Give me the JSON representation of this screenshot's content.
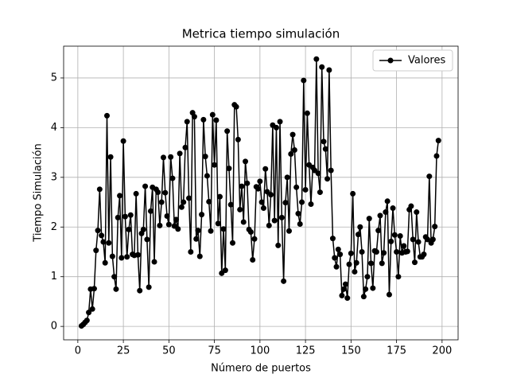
{
  "chart_data": {
    "type": "line",
    "title": "Metrica tiempo simulación",
    "xlabel": "Número de puertos",
    "ylabel": "Tiempo Simulación",
    "x": [
      2,
      3,
      4,
      5,
      6,
      7,
      8,
      9,
      10,
      11,
      12,
      13,
      14,
      15,
      16,
      17,
      18,
      19,
      20,
      21,
      22,
      23,
      24,
      25,
      26,
      27,
      28,
      29,
      30,
      31,
      32,
      33,
      34,
      35,
      36,
      37,
      38,
      39,
      40,
      41,
      42,
      43,
      44,
      45,
      46,
      47,
      48,
      49,
      50,
      51,
      52,
      53,
      54,
      55,
      56,
      57,
      58,
      59,
      60,
      61,
      62,
      63,
      64,
      65,
      66,
      67,
      68,
      69,
      70,
      71,
      72,
      73,
      74,
      75,
      76,
      77,
      78,
      79,
      80,
      81,
      82,
      83,
      84,
      85,
      86,
      87,
      88,
      89,
      90,
      91,
      92,
      93,
      94,
      95,
      96,
      97,
      98,
      99,
      100,
      101,
      102,
      103,
      104,
      105,
      106,
      107,
      108,
      109,
      110,
      111,
      112,
      113,
      114,
      115,
      116,
      117,
      118,
      119,
      120,
      121,
      122,
      123,
      124,
      125,
      126,
      127,
      128,
      129,
      130,
      131,
      132,
      133,
      134,
      135,
      136,
      137,
      138,
      139,
      140,
      141,
      142,
      143,
      144,
      145,
      146,
      147,
      148,
      149,
      150,
      151,
      152,
      153,
      154,
      155,
      156,
      157,
      158,
      159,
      160,
      161,
      162,
      163,
      164,
      165,
      166,
      167,
      168,
      169,
      170,
      171,
      172,
      173,
      174,
      175,
      176,
      177,
      178,
      179,
      180,
      181,
      182,
      183,
      184,
      185,
      186,
      187,
      188,
      189,
      190,
      191,
      192,
      193,
      194,
      195,
      196,
      197,
      198
    ],
    "series": [
      {
        "name": "Valores",
        "color": "#000000",
        "values": [
          0.01,
          0.04,
          0.08,
          0.12,
          0.28,
          0.75,
          0.35,
          0.76,
          1.53,
          1.93,
          2.76,
          1.83,
          1.7,
          1.28,
          4.24,
          1.68,
          3.41,
          1.41,
          1.0,
          0.75,
          2.19,
          2.63,
          1.38,
          3.73,
          2.21,
          1.4,
          1.95,
          2.24,
          1.45,
          1.43,
          2.67,
          1.44,
          0.72,
          1.87,
          1.95,
          2.82,
          1.75,
          0.79,
          2.32,
          2.8,
          1.3,
          2.76,
          2.7,
          2.03,
          2.5,
          3.4,
          2.69,
          2.22,
          2.05,
          3.41,
          2.98,
          2.02,
          2.15,
          1.96,
          3.48,
          2.4,
          2.5,
          3.6,
          4.12,
          2.58,
          1.5,
          4.3,
          4.22,
          1.76,
          1.93,
          1.41,
          2.25,
          4.16,
          3.42,
          3.03,
          2.51,
          1.92,
          4.26,
          3.25,
          4.15,
          2.07,
          2.61,
          1.07,
          1.96,
          1.13,
          3.93,
          3.18,
          2.45,
          1.68,
          4.46,
          4.42,
          3.76,
          2.35,
          2.82,
          2.1,
          3.32,
          2.88,
          1.95,
          1.9,
          1.34,
          1.76,
          2.81,
          2.77,
          2.92,
          2.5,
          2.38,
          3.17,
          2.71,
          2.03,
          2.65,
          4.05,
          2.13,
          4.0,
          1.63,
          4.12,
          2.19,
          0.91,
          2.49,
          3.0,
          1.92,
          3.47,
          3.86,
          3.55,
          2.8,
          2.27,
          2.06,
          2.5,
          4.95,
          2.75,
          4.29,
          3.25,
          2.46,
          3.2,
          3.14,
          5.38,
          3.08,
          2.7,
          5.22,
          3.72,
          3.57,
          2.97,
          5.16,
          3.14,
          1.77,
          1.38,
          1.2,
          1.55,
          1.45,
          0.62,
          0.75,
          0.85,
          0.57,
          1.25,
          1.47,
          2.67,
          1.1,
          1.28,
          1.85,
          2.0,
          1.5,
          0.6,
          0.75,
          1.0,
          2.17,
          1.27,
          0.77,
          1.52,
          1.5,
          1.93,
          2.23,
          1.27,
          1.48,
          2.3,
          2.52,
          0.64,
          1.71,
          2.38,
          1.84,
          1.5,
          1.0,
          1.82,
          1.48,
          1.62,
          1.5,
          1.51,
          2.35,
          2.42,
          1.75,
          1.29,
          2.3,
          1.7,
          1.4,
          1.4,
          1.45,
          1.8,
          1.75,
          3.02,
          1.68,
          1.75,
          2.01,
          3.43,
          3.74
        ]
      }
    ],
    "xlim": [
      -7.8,
      208.8
    ],
    "ylim": [
      -0.27,
      5.64
    ],
    "xticks": [
      0,
      25,
      50,
      75,
      100,
      125,
      150,
      175,
      200
    ],
    "yticks": [
      0,
      1,
      2,
      3,
      4,
      5
    ],
    "grid": true,
    "legend": "upper right"
  }
}
